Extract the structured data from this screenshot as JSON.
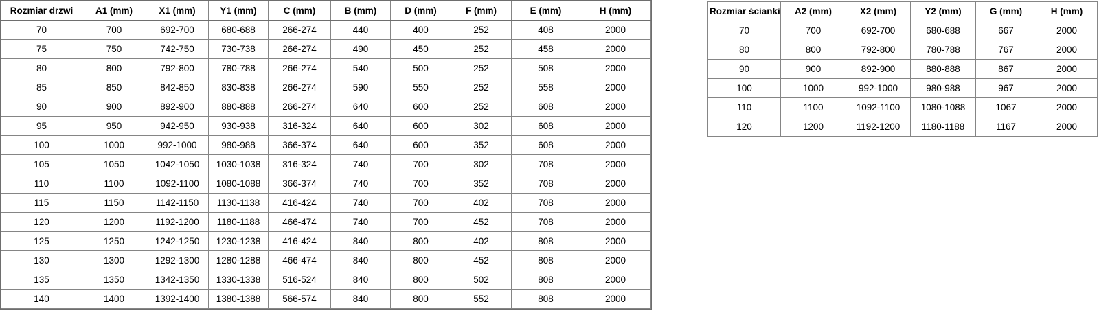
{
  "page": {
    "background_color": "#ffffff",
    "grid_line_color": "#858585",
    "outer_border_color": "#6e6e6e",
    "text_color": "#000000"
  },
  "doors_table": {
    "columns": [
      "Rozmiar drzwi",
      "A1 (mm)",
      "X1 (mm)",
      "Y1 (mm)",
      "C (mm)",
      "B (mm)",
      "D (mm)",
      "F (mm)",
      "E (mm)",
      "H (mm)"
    ],
    "rows": [
      [
        "70",
        "700",
        "692-700",
        "680-688",
        "266-274",
        "440",
        "400",
        "252",
        "408",
        "2000"
      ],
      [
        "75",
        "750",
        "742-750",
        "730-738",
        "266-274",
        "490",
        "450",
        "252",
        "458",
        "2000"
      ],
      [
        "80",
        "800",
        "792-800",
        "780-788",
        "266-274",
        "540",
        "500",
        "252",
        "508",
        "2000"
      ],
      [
        "85",
        "850",
        "842-850",
        "830-838",
        "266-274",
        "590",
        "550",
        "252",
        "558",
        "2000"
      ],
      [
        "90",
        "900",
        "892-900",
        "880-888",
        "266-274",
        "640",
        "600",
        "252",
        "608",
        "2000"
      ],
      [
        "95",
        "950",
        "942-950",
        "930-938",
        "316-324",
        "640",
        "600",
        "302",
        "608",
        "2000"
      ],
      [
        "100",
        "1000",
        "992-1000",
        "980-988",
        "366-374",
        "640",
        "600",
        "352",
        "608",
        "2000"
      ],
      [
        "105",
        "1050",
        "1042-1050",
        "1030-1038",
        "316-324",
        "740",
        "700",
        "302",
        "708",
        "2000"
      ],
      [
        "110",
        "1100",
        "1092-1100",
        "1080-1088",
        "366-374",
        "740",
        "700",
        "352",
        "708",
        "2000"
      ],
      [
        "115",
        "1150",
        "1142-1150",
        "1130-1138",
        "416-424",
        "740",
        "700",
        "402",
        "708",
        "2000"
      ],
      [
        "120",
        "1200",
        "1192-1200",
        "1180-1188",
        "466-474",
        "740",
        "700",
        "452",
        "708",
        "2000"
      ],
      [
        "125",
        "1250",
        "1242-1250",
        "1230-1238",
        "416-424",
        "840",
        "800",
        "402",
        "808",
        "2000"
      ],
      [
        "130",
        "1300",
        "1292-1300",
        "1280-1288",
        "466-474",
        "840",
        "800",
        "452",
        "808",
        "2000"
      ],
      [
        "135",
        "1350",
        "1342-1350",
        "1330-1338",
        "516-524",
        "840",
        "800",
        "502",
        "808",
        "2000"
      ],
      [
        "140",
        "1400",
        "1392-1400",
        "1380-1388",
        "566-574",
        "840",
        "800",
        "552",
        "808",
        "2000"
      ]
    ]
  },
  "walls_table": {
    "columns": [
      "Rozmiar ścianki",
      "A2 (mm)",
      "X2 (mm)",
      "Y2 (mm)",
      "G (mm)",
      "H (mm)"
    ],
    "rows": [
      [
        "70",
        "700",
        "692-700",
        "680-688",
        "667",
        "2000"
      ],
      [
        "80",
        "800",
        "792-800",
        "780-788",
        "767",
        "2000"
      ],
      [
        "90",
        "900",
        "892-900",
        "880-888",
        "867",
        "2000"
      ],
      [
        "100",
        "1000",
        "992-1000",
        "980-988",
        "967",
        "2000"
      ],
      [
        "110",
        "1100",
        "1092-1100",
        "1080-1088",
        "1067",
        "2000"
      ],
      [
        "120",
        "1200",
        "1192-1200",
        "1180-1188",
        "1167",
        "2000"
      ]
    ]
  }
}
